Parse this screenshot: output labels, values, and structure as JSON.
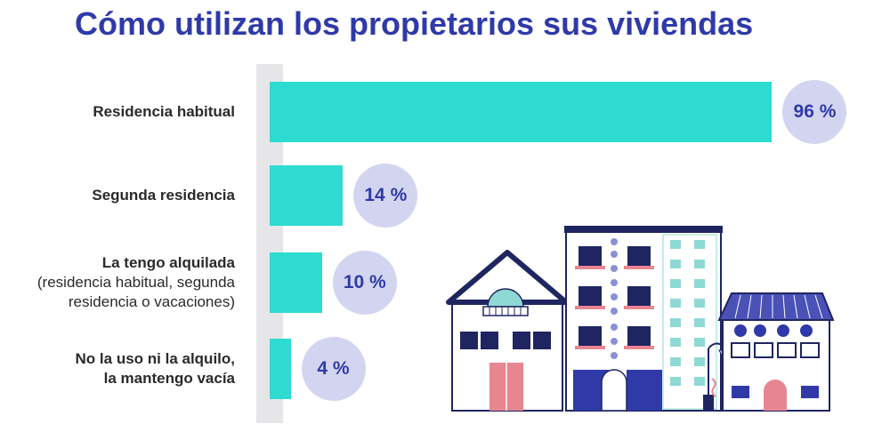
{
  "title": "Cómo utilizan los propietarios sus viviendas",
  "colors": {
    "title": "#2f3aa8",
    "bar": "#2ddbd0",
    "bubble": "#d3d5f0",
    "axis_band": "#e6e6e8"
  },
  "chart_data": {
    "type": "bar",
    "orientation": "horizontal",
    "title": "Cómo utilizan los propietarios sus viviendas",
    "categories": [
      "Residencia habitual",
      "Segunda residencia",
      "La tengo alquilada (residencia habitual, segunda residencia o vacaciones)",
      "No la uso ni la alquilo, la mantengo vacía"
    ],
    "category_display": [
      {
        "main": [
          "Residencia habitual"
        ],
        "sub": []
      },
      {
        "main": [
          "Segunda residencia"
        ],
        "sub": []
      },
      {
        "main": [
          "La tengo alquilada"
        ],
        "sub": [
          "(residencia habitual, segunda",
          "residencia o vacaciones)"
        ]
      },
      {
        "main": [
          "No la uso ni la alquilo,",
          "la mantengo vacía"
        ],
        "sub": []
      }
    ],
    "values": [
      96,
      14,
      10,
      4
    ],
    "value_labels": [
      "96 %",
      "14 %",
      "10 %",
      "4 %"
    ],
    "unit": "%",
    "xlim": [
      0,
      100
    ],
    "grid": false,
    "legend": "none"
  },
  "illustration": {
    "icon": "houses-illustration-icon"
  }
}
